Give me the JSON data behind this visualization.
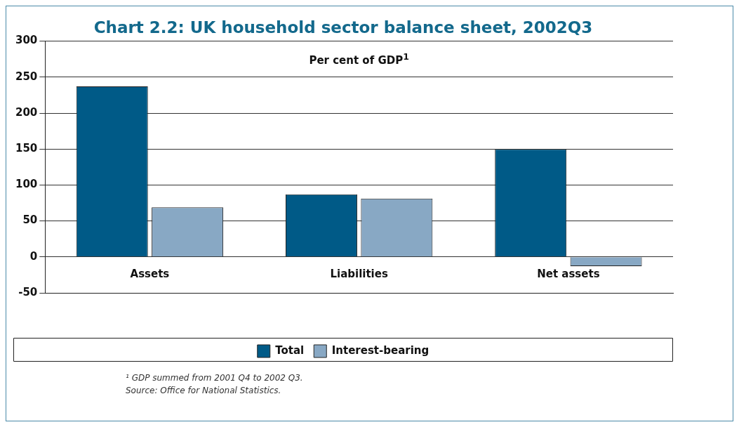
{
  "chart_data": {
    "type": "bar",
    "title": "Chart 2.2: UK household sector balance sheet, 2002Q3",
    "subtitle": "Per cent of GDP$^{1}$",
    "categories": [
      "Assets",
      "Liabilities",
      "Net assets"
    ],
    "series": [
      {
        "name": "Total",
        "color": "#005a87",
        "values": [
          237,
          87,
          150
        ]
      },
      {
        "name": "Interest-bearing",
        "color": "#88a8c4",
        "values": [
          69,
          81,
          -13
        ]
      }
    ],
    "ylim": [
      -50,
      300
    ],
    "yticks": [
      -50,
      0,
      50,
      100,
      150,
      200,
      250,
      300
    ],
    "grid": "y",
    "legend": "bottom",
    "annotations": [
      "¹ GDP summed from 2001 Q4 to 2002 Q3.",
      "Source: Office for National Statistics."
    ]
  }
}
